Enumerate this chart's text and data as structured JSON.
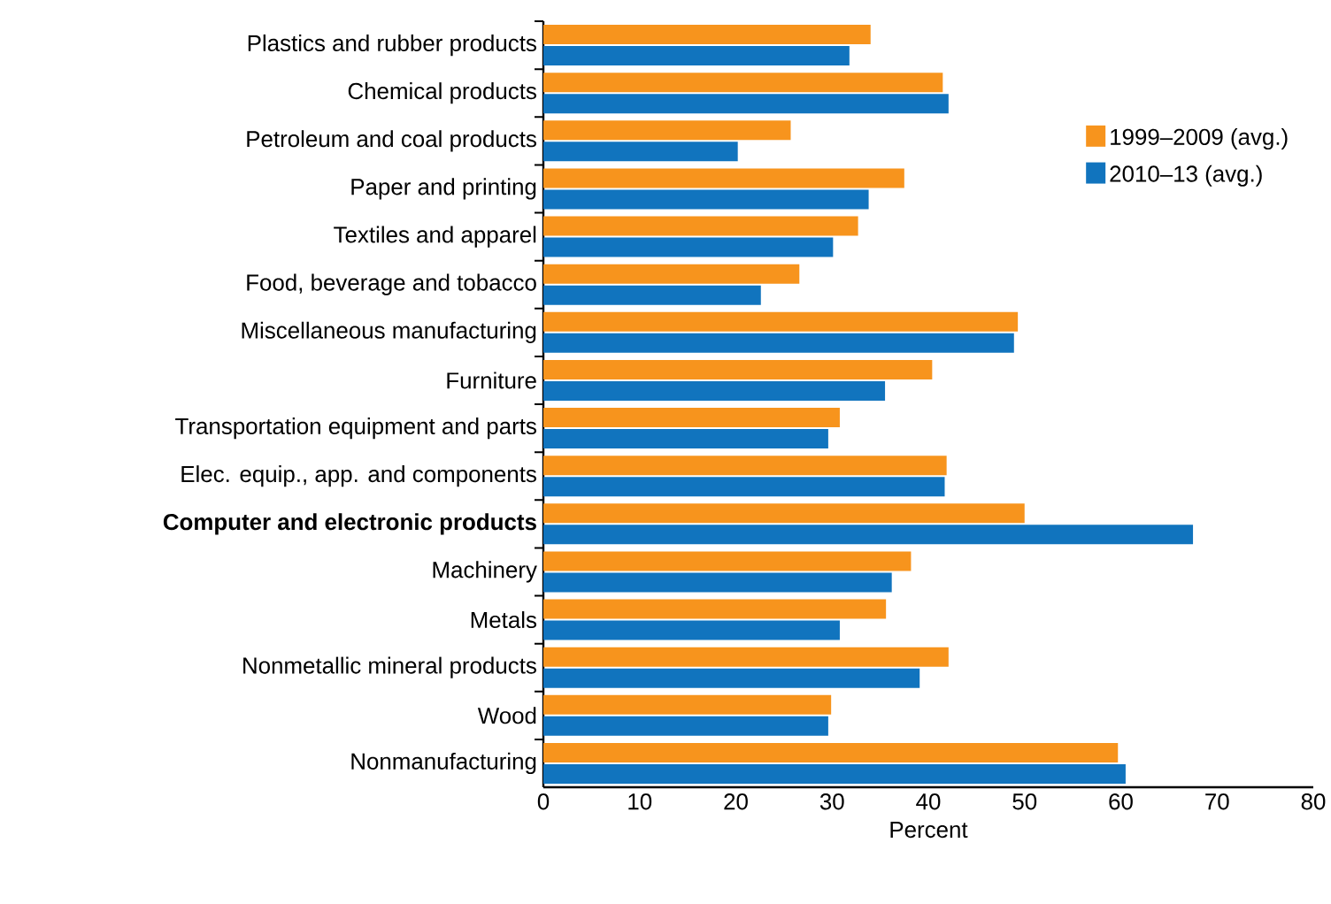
{
  "chart_data": {
    "type": "bar",
    "orientation": "horizontal",
    "xlabel": "Percent",
    "categories": [
      "Plastics and rubber products",
      "Chemical products",
      "Petroleum and coal products",
      "Paper and printing",
      "Textiles and apparel",
      "Food, beverage and tobacco",
      "Miscellaneous manufacturing",
      "Furniture",
      "Transportation equipment and parts",
      "Elec. equip., app. and components",
      "**Computer and electronic products**",
      "Machinery",
      "Metals",
      "Nonmetallic mineral products",
      "Wood",
      "Nonmanufacturing"
    ],
    "series": [
      {
        "name": "1999–2009 (avg.)",
        "color": "#f7941d",
        "values": [
          34.0,
          41.5,
          25.7,
          37.5,
          32.7,
          26.6,
          49.3,
          40.4,
          30.8,
          41.9,
          50.0,
          38.2,
          35.6,
          42.1,
          29.9,
          59.7
        ]
      },
      {
        "name": "2010–13 (avg.)",
        "color": "#1174be",
        "values": [
          31.8,
          42.1,
          20.2,
          33.8,
          30.1,
          22.6,
          48.9,
          35.5,
          29.6,
          41.7,
          67.5,
          36.2,
          30.8,
          39.1,
          29.6,
          60.5
        ]
      }
    ],
    "xlim": [
      0,
      80
    ],
    "xticks": [
      0,
      10,
      20,
      30,
      40,
      50,
      60,
      70,
      80
    ],
    "grid": false,
    "legend": "top right"
  }
}
